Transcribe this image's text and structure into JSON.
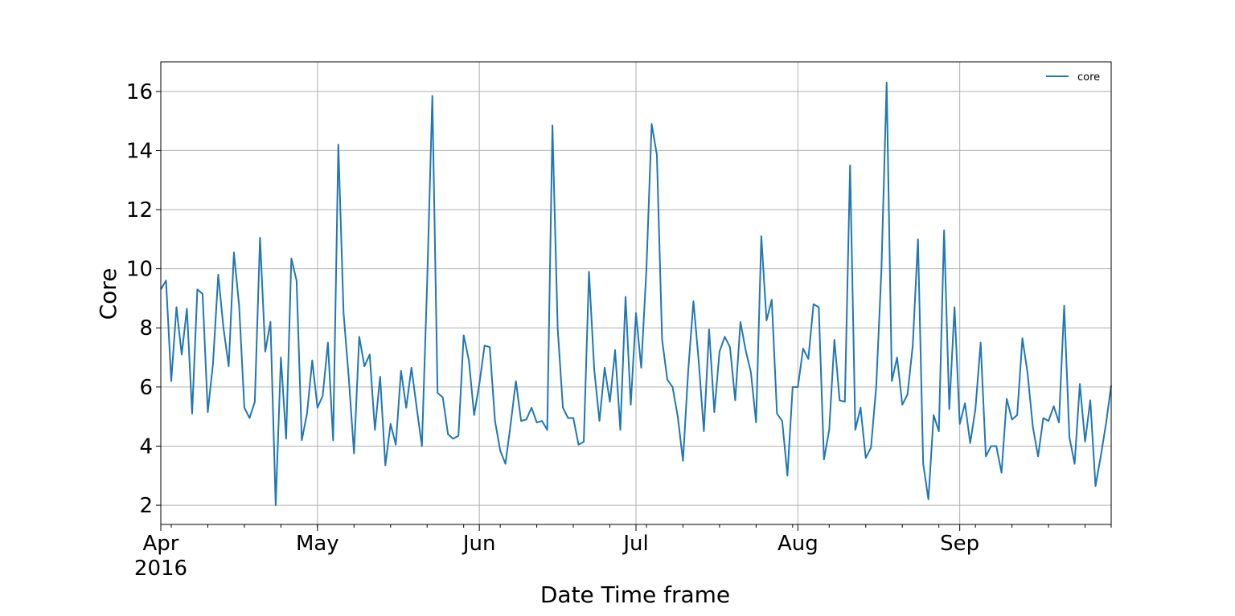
{
  "chart_data": {
    "type": "line",
    "title": "",
    "xlabel": "Date Time frame",
    "ylabel": "Core",
    "x_ticks": [
      {
        "date": "2016-04-01",
        "label": "Apr",
        "sublabel": "2016"
      },
      {
        "date": "2016-05-01",
        "label": "May",
        "sublabel": ""
      },
      {
        "date": "2016-06-01",
        "label": "Jun",
        "sublabel": ""
      },
      {
        "date": "2016-07-01",
        "label": "Jul",
        "sublabel": ""
      },
      {
        "date": "2016-08-01",
        "label": "Aug",
        "sublabel": ""
      },
      {
        "date": "2016-09-01",
        "label": "Sep",
        "sublabel": ""
      }
    ],
    "y_ticks": [
      2,
      4,
      6,
      8,
      10,
      12,
      14,
      16
    ],
    "xlim": [
      "2016-04-01",
      "2016-09-30"
    ],
    "ylim": [
      1.35,
      17
    ],
    "grid": true,
    "legend": {
      "position": "top-right"
    },
    "colors": {
      "series": "#1f77b4"
    },
    "series": [
      {
        "name": "core",
        "start_date": "2016-04-01",
        "step_days": 1,
        "values": [
          9.3,
          9.6,
          6.2,
          8.7,
          7.1,
          8.65,
          5.1,
          9.3,
          9.15,
          5.15,
          6.8,
          9.8,
          8.0,
          6.7,
          10.55,
          8.75,
          5.3,
          4.95,
          5.5,
          11.05,
          7.2,
          8.2,
          2.0,
          7.0,
          4.25,
          10.35,
          9.6,
          4.2,
          5.1,
          6.9,
          5.3,
          5.7,
          7.5,
          4.2,
          14.2,
          8.5,
          6.3,
          3.75,
          7.7,
          6.7,
          7.1,
          4.55,
          6.35,
          3.35,
          4.75,
          4.05,
          6.55,
          5.3,
          6.65,
          5.3,
          4.0,
          9.5,
          15.85,
          5.8,
          5.65,
          4.4,
          4.25,
          4.35,
          7.75,
          6.9,
          5.05,
          6.1,
          7.4,
          7.35,
          4.85,
          3.85,
          3.4,
          4.75,
          6.2,
          4.85,
          4.9,
          5.3,
          4.8,
          4.85,
          4.55,
          14.85,
          8.0,
          5.3,
          4.95,
          4.95,
          4.05,
          4.15,
          9.9,
          6.6,
          4.85,
          6.65,
          5.5,
          7.25,
          4.55,
          9.05,
          5.4,
          8.5,
          6.65,
          10.0,
          14.9,
          13.85,
          7.6,
          6.25,
          6.0,
          5.0,
          3.5,
          6.55,
          8.9,
          6.9,
          4.5,
          7.95,
          5.15,
          7.2,
          7.7,
          7.35,
          5.55,
          8.2,
          7.25,
          6.5,
          4.8,
          11.1,
          8.25,
          8.95,
          5.1,
          4.85,
          3.0,
          6.0,
          6.0,
          7.3,
          6.95,
          8.8,
          8.7,
          3.55,
          4.55,
          7.6,
          5.55,
          5.5,
          13.5,
          4.55,
          5.3,
          3.6,
          3.95,
          6.0,
          9.95,
          16.3,
          6.2,
          7.0,
          5.4,
          5.75,
          7.4,
          11.0,
          3.4,
          2.2,
          5.05,
          4.5,
          11.3,
          5.25,
          8.7,
          4.75,
          5.45,
          4.1,
          5.25,
          7.5,
          3.65,
          4.0,
          4.0,
          3.1,
          5.6,
          4.9,
          5.05,
          7.65,
          6.45,
          4.65,
          3.65,
          4.95,
          4.85,
          5.35,
          4.8,
          8.75,
          4.3,
          3.4,
          6.1,
          4.15,
          5.55,
          2.65,
          3.65,
          4.75,
          6.05
        ]
      }
    ]
  }
}
